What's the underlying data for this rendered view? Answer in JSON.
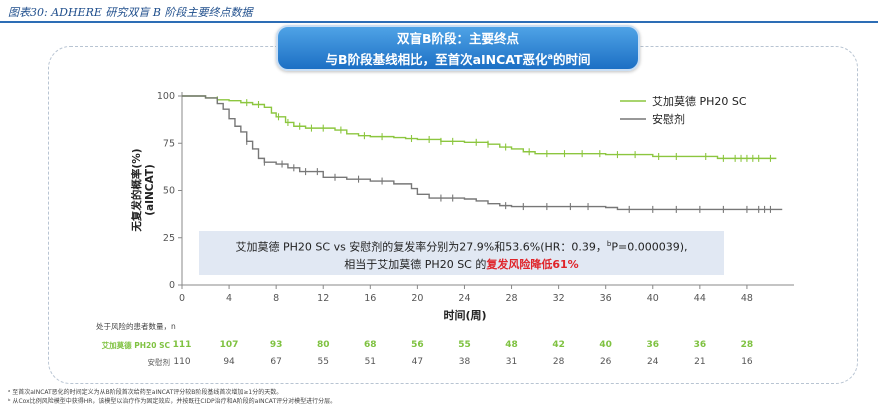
{
  "caption": "图表30:  ADHERE 研究双盲 B 阶段主要终点数据",
  "banner": {
    "line1": "双盲B阶段：主要终点",
    "line2_pre": "与B阶段基线相比，至首次aINCAT恶化",
    "line2_sup": "a",
    "line2_post": "的时间"
  },
  "chart_data": {
    "type": "line",
    "xlabel": "时间(周)",
    "ylabel": "无复发的概率(%)",
    "ylabel_sub": "(aINCAT)",
    "xlim": [
      0,
      52
    ],
    "ylim": [
      0,
      100
    ],
    "xticks": [
      0,
      4,
      8,
      12,
      16,
      20,
      24,
      28,
      32,
      36,
      40,
      44,
      48
    ],
    "yticks": [
      0,
      25,
      50,
      75,
      100
    ],
    "legend_position": "top-right",
    "series": [
      {
        "name": "艾加莫德 PH20 SC",
        "color": "#8cc63f",
        "steps": [
          [
            0,
            100
          ],
          [
            1.5,
            100
          ],
          [
            2,
            99
          ],
          [
            3,
            98
          ],
          [
            4,
            97.5
          ],
          [
            5,
            96.5
          ],
          [
            6,
            95.5
          ],
          [
            7,
            94
          ],
          [
            7.6,
            91
          ],
          [
            8,
            89
          ],
          [
            8.8,
            86
          ],
          [
            9.5,
            84
          ],
          [
            10.5,
            83
          ],
          [
            13,
            82
          ],
          [
            14,
            80
          ],
          [
            15,
            79
          ],
          [
            16,
            78.5
          ],
          [
            18,
            78
          ],
          [
            19,
            77.5
          ],
          [
            20,
            77
          ],
          [
            22,
            76
          ],
          [
            24,
            75.5
          ],
          [
            26,
            74.5
          ],
          [
            27,
            73
          ],
          [
            28,
            72
          ],
          [
            29,
            70.5
          ],
          [
            30,
            69.5
          ],
          [
            33,
            69.5
          ],
          [
            36,
            69
          ],
          [
            40,
            68
          ],
          [
            44,
            68
          ],
          [
            45.5,
            67
          ],
          [
            50.5,
            67
          ]
        ],
        "censor": [
          3,
          5.5,
          6.5,
          8.2,
          9,
          10,
          11,
          12,
          13.5,
          15.5,
          17,
          19.5,
          21,
          22,
          23,
          25,
          26,
          27.5,
          29.5,
          31,
          32.5,
          34,
          35.5,
          37,
          38.5,
          40.5,
          42,
          44.5,
          46,
          47,
          47.5,
          48,
          48.5,
          49,
          50
        ]
      },
      {
        "name": "安慰剂",
        "color": "#777777",
        "steps": [
          [
            0,
            100
          ],
          [
            2,
            99
          ],
          [
            3,
            96
          ],
          [
            3.5,
            93
          ],
          [
            4,
            88
          ],
          [
            4.5,
            84
          ],
          [
            5,
            81
          ],
          [
            5.5,
            76
          ],
          [
            6,
            72
          ],
          [
            6.5,
            67
          ],
          [
            7,
            65
          ],
          [
            8,
            64
          ],
          [
            9,
            62
          ],
          [
            10,
            60
          ],
          [
            12,
            57
          ],
          [
            14,
            56
          ],
          [
            16,
            55
          ],
          [
            18,
            53.5
          ],
          [
            19.5,
            51
          ],
          [
            20,
            48
          ],
          [
            21,
            46
          ],
          [
            24,
            45.5
          ],
          [
            25,
            44.5
          ],
          [
            26,
            43
          ],
          [
            27,
            42
          ],
          [
            28,
            41.5
          ],
          [
            30,
            41.5
          ],
          [
            36,
            41
          ],
          [
            37,
            40
          ],
          [
            51,
            40
          ]
        ],
        "censor": [
          5.5,
          7,
          8.5,
          9.5,
          10.5,
          11.5,
          13,
          15,
          17,
          22,
          23,
          27.5,
          29,
          31,
          33,
          34.5,
          38,
          40,
          42,
          44,
          46,
          48,
          49,
          49.5,
          50
        ]
      }
    ],
    "note": {
      "line1_pre": "艾加莫德 PH20 SC vs 安慰剂的复发率分别为27.9%和53.6%(HR：0.39，",
      "line1_sup": "b",
      "line1_post": "P=0.000039),",
      "line2_pre": "相当于艾加莫德 PH20 SC 的",
      "line2_emph": "复发风险降低61%"
    }
  },
  "risk_table": {
    "title": "处于风险的患者数量，n",
    "rows": [
      {
        "name": "艾加莫德 PH20 SC",
        "values": [
          "111",
          "107",
          "93",
          "80",
          "68",
          "56",
          "55",
          "48",
          "42",
          "40",
          "36",
          "36",
          "28"
        ]
      },
      {
        "name": "安慰剂",
        "values": [
          "110",
          "94",
          "67",
          "55",
          "51",
          "47",
          "38",
          "31",
          "28",
          "26",
          "24",
          "21",
          "16"
        ]
      }
    ]
  },
  "footnotes": {
    "a": "ᵃ 至首次aINCAT恶化的时间定义为从B阶段首次给药至aINCAT评分较B阶段基线首次增加≥1分的天数。",
    "b": "ᵇ 从Cox比例风险模型中获得HR，该模型以治疗作为固定效应，并按既往CIDP治疗和A阶段的aINCAT评分对模型进行分层。"
  }
}
